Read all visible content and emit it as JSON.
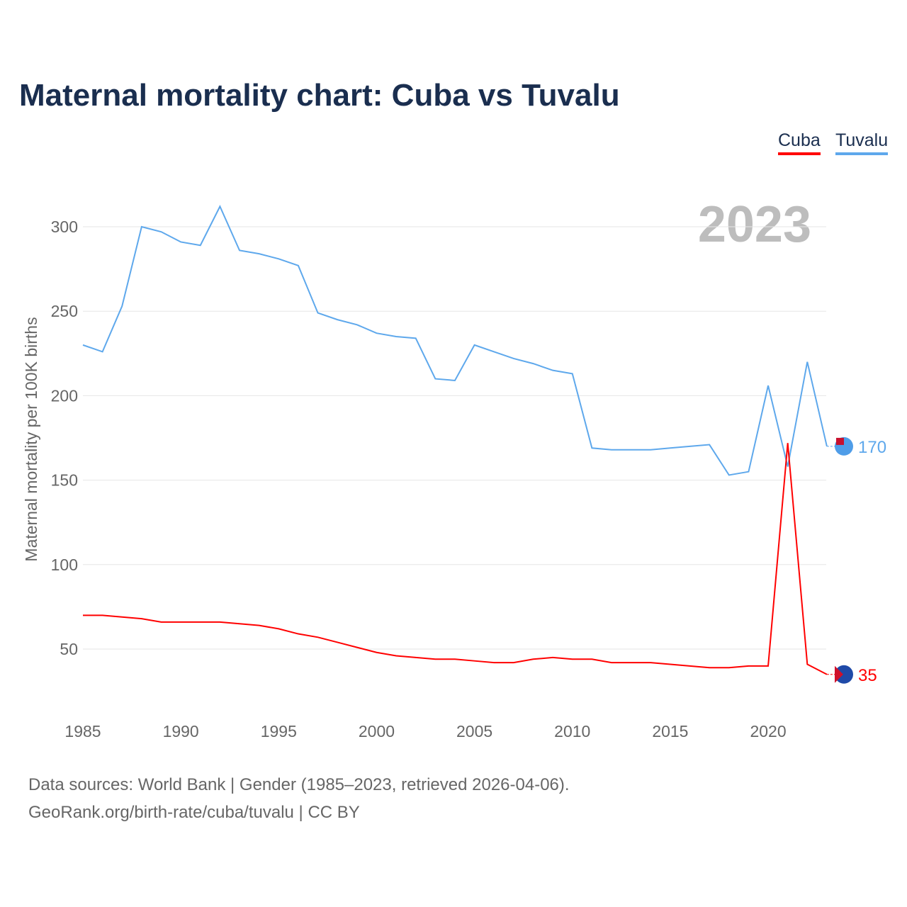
{
  "chart_data": {
    "type": "line",
    "title": "Maternal mortality chart: Cuba vs Tuvalu",
    "ylabel": "Maternal mortality per 100K births",
    "xlabel": "",
    "year_label": "2023",
    "xlim": [
      1985,
      2023
    ],
    "ylim": [
      20,
      330
    ],
    "xticks": [
      1985,
      1990,
      1995,
      2000,
      2005,
      2010,
      2015,
      2020
    ],
    "yticks": [
      50,
      100,
      150,
      200,
      250,
      300
    ],
    "x": [
      1985,
      1986,
      1987,
      1988,
      1989,
      1990,
      1991,
      1992,
      1993,
      1994,
      1995,
      1996,
      1997,
      1998,
      1999,
      2000,
      2001,
      2002,
      2003,
      2004,
      2005,
      2006,
      2007,
      2008,
      2009,
      2010,
      2011,
      2012,
      2013,
      2014,
      2015,
      2016,
      2017,
      2018,
      2019,
      2020,
      2021,
      2022,
      2023
    ],
    "series": [
      {
        "name": "Cuba",
        "color": "#ff0000",
        "end_label": "35",
        "values": [
          70,
          70,
          69,
          68,
          66,
          66,
          66,
          66,
          65,
          64,
          62,
          59,
          57,
          54,
          51,
          48,
          46,
          45,
          44,
          44,
          43,
          42,
          42,
          44,
          45,
          44,
          44,
          42,
          42,
          42,
          41,
          40,
          39,
          39,
          40,
          40,
          172,
          41,
          35
        ]
      },
      {
        "name": "Tuvalu",
        "color": "#5ea8ec",
        "end_label": "170",
        "values": [
          230,
          226,
          253,
          300,
          297,
          291,
          289,
          312,
          286,
          284,
          281,
          277,
          249,
          245,
          242,
          237,
          235,
          234,
          210,
          209,
          230,
          226,
          222,
          219,
          215,
          213,
          169,
          168,
          168,
          168,
          169,
          170,
          171,
          153,
          155,
          206,
          158,
          220,
          170
        ]
      }
    ],
    "grid": true,
    "legend": "top-right"
  },
  "source_line1": "Data sources: World Bank | Gender (1985–2023, retrieved 2026-04-06).",
  "source_line2": "GeoRank.org/birth-rate/cuba/tuvalu | CC BY"
}
